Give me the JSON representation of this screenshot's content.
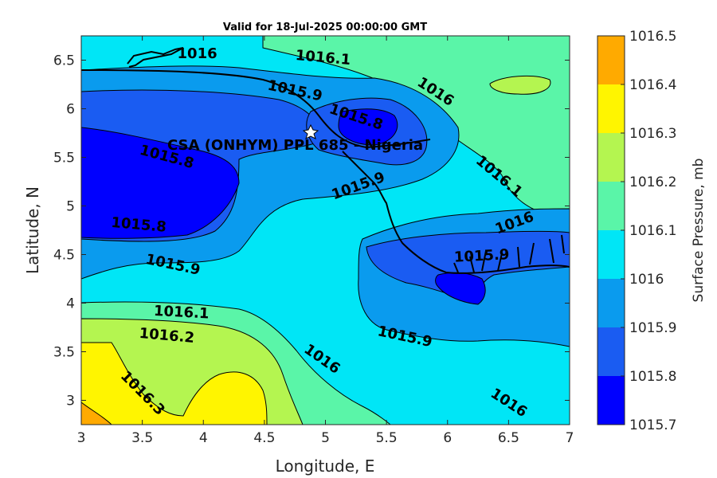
{
  "chart_data": {
    "type": "contour",
    "title": "Valid for 18-Jul-2025 00:00:00 GMT",
    "xlabel": "Longitude, E",
    "ylabel": "Latitude, N",
    "xlim": [
      3,
      7
    ],
    "ylim": [
      2.75,
      6.75
    ],
    "xticks": [
      3,
      3.5,
      4,
      4.5,
      5,
      5.5,
      6,
      6.5,
      7
    ],
    "xtick_labels": [
      "3",
      "3.5",
      "4",
      "4.5",
      "5",
      "5.5",
      "6",
      "6.5",
      "7"
    ],
    "yticks": [
      3,
      3.5,
      4,
      4.5,
      5,
      5.5,
      6,
      6.5
    ],
    "ytick_labels": [
      "3",
      "3.5",
      "4",
      "4.5",
      "5",
      "5.5",
      "6",
      "6.5"
    ],
    "colorbar": {
      "label": "Surface Pressure, mb",
      "levels": [
        1015.7,
        1015.8,
        1015.9,
        1016,
        1016.1,
        1016.2,
        1016.3,
        1016.4,
        1016.5
      ],
      "level_labels": [
        "1015.7",
        "1015.8",
        "1015.9",
        "1016",
        "1016.1",
        "1016.2",
        "1016.3",
        "1016.4",
        "1016.5"
      ],
      "colors": [
        "#0000ff",
        "#1a5cf2",
        "#0a9bee",
        "#00e6f6",
        "#5af5a8",
        "#b4f550",
        "#fff500",
        "#ffaa00",
        "#ff5500"
      ]
    },
    "site": {
      "label": "CSA (ONHYM) PPL 685 - Nigeria",
      "lon": 4.88,
      "lat": 5.75
    },
    "contour_labels": [
      {
        "text": "1016",
        "lon": 3.95,
        "lat": 6.56,
        "rot": 0
      },
      {
        "text": "1016.1",
        "lon": 4.98,
        "lat": 6.52,
        "rot": 5
      },
      {
        "text": "1016",
        "lon": 5.9,
        "lat": 6.17,
        "rot": 33
      },
      {
        "text": "1015.9",
        "lon": 4.75,
        "lat": 6.18,
        "rot": 12
      },
      {
        "text": "1015.8",
        "lon": 5.25,
        "lat": 5.91,
        "rot": 18
      },
      {
        "text": "1015.8",
        "lon": 3.7,
        "lat": 5.5,
        "rot": 15
      },
      {
        "text": "1015.9",
        "lon": 5.27,
        "lat": 5.2,
        "rot": -20
      },
      {
        "text": "1016.1",
        "lon": 6.42,
        "lat": 5.3,
        "rot": 40
      },
      {
        "text": "1016",
        "lon": 6.55,
        "lat": 4.82,
        "rot": -20
      },
      {
        "text": "1015.8",
        "lon": 3.47,
        "lat": 4.8,
        "rot": 5
      },
      {
        "text": "1015.9",
        "lon": 6.28,
        "lat": 4.48,
        "rot": -3
      },
      {
        "text": "1015.9",
        "lon": 3.75,
        "lat": 4.39,
        "rot": 12
      },
      {
        "text": "1016.1",
        "lon": 3.82,
        "lat": 3.9,
        "rot": 3
      },
      {
        "text": "1016.2",
        "lon": 3.7,
        "lat": 3.66,
        "rot": 5
      },
      {
        "text": "1015.9",
        "lon": 5.65,
        "lat": 3.65,
        "rot": 12
      },
      {
        "text": "1016",
        "lon": 4.97,
        "lat": 3.42,
        "rot": 35
      },
      {
        "text": "1016.3",
        "lon": 3.5,
        "lat": 3.07,
        "rot": 45
      },
      {
        "text": "1016",
        "lon": 6.5,
        "lat": 2.97,
        "rot": 33
      }
    ]
  }
}
